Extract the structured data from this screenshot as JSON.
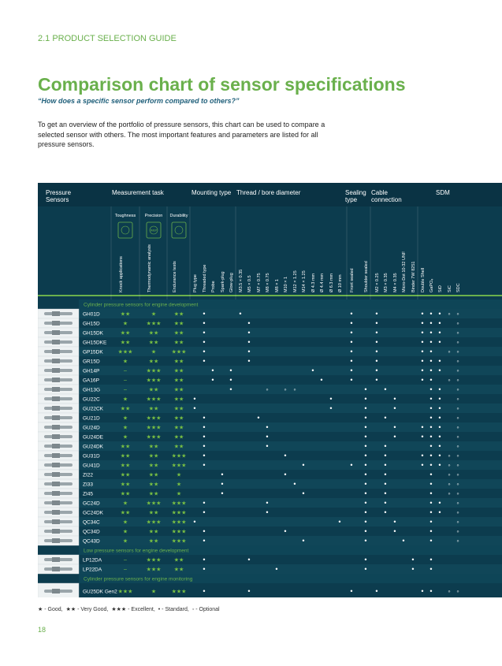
{
  "header": {
    "section": "2.1  PRODUCT SELECTION GUIDE",
    "title": "Comparison chart of sensor specifications",
    "subtitle": "“How does a specific sensor perform compared to others?”",
    "intro": "To get an overview of the portfolio of pressure sensors, this chart can be used to compare a selected sensor with others. The most important features and parameters are listed for all pressure sensors."
  },
  "table": {
    "groups": [
      "Pressure Sensors",
      "Measurement task",
      "Mounting type",
      "Thread / bore diameter",
      "Sealing type",
      "Cable connection",
      "SDM"
    ],
    "task_heads": [
      "Toughness",
      "Precision",
      "Durability"
    ],
    "icon_label": "IMEP",
    "task_columns": [
      "Knock applications",
      "Thermodynamic analysis",
      "Endurance tests"
    ],
    "columns": [
      "Plug type",
      "Threaded type",
      "Probe",
      "Spark-plug",
      "Glow-plug",
      "M3.5 × 0.35",
      "M5 × 0.5",
      "M7 × 0.75",
      "M8 × 0.75",
      "M8 × 1",
      "M10 × 1",
      "M12 × 1.25",
      "M14 × 1.25",
      "Ø 4.3 mm",
      "Ø 4.4 mm",
      "Ø 6.3 mm",
      "Ø 10 mm",
      "Front sealed",
      "Shoulder sealed",
      "M2 × 0.25",
      "M3 × 0.35",
      "M4 × 0.35",
      "Micro-Dot 10-32 UNF",
      "Binder 7W 8251",
      "Double Shell",
      "GaPO₄",
      "SiD",
      "SiC",
      "SDC"
    ],
    "sections": [
      {
        "title": "Cylinder pressure sensors for engine development",
        "rows": [
          {
            "name": "GH01D",
            "ratings": [
              "★★",
              "★",
              "★★"
            ],
            "cells": {
              "1": "•",
              "5": "•",
              "17": "•",
              "19": "•",
              "24": "•",
              "25": "•",
              "26": "•",
              "27": "◦",
              "28": "◦"
            }
          },
          {
            "name": "GH15D",
            "ratings": [
              "★",
              "★★★",
              "★★"
            ],
            "cells": {
              "1": "•",
              "6": "•",
              "17": "•",
              "19": "•",
              "24": "•",
              "25": "•",
              "26": "•",
              "28": "◦"
            }
          },
          {
            "name": "GH15DK",
            "ratings": [
              "★★",
              "★★",
              "★★"
            ],
            "cells": {
              "1": "•",
              "6": "•",
              "17": "•",
              "19": "•",
              "24": "•",
              "25": "•",
              "26": "•",
              "28": "◦"
            }
          },
          {
            "name": "GH15DKE",
            "ratings": [
              "★★",
              "★★",
              "★★"
            ],
            "cells": {
              "1": "•",
              "6": "•",
              "17": "•",
              "19": "•",
              "24": "•",
              "25": "•",
              "26": "•",
              "28": "◦"
            }
          },
          {
            "name": "GP15DK",
            "ratings": [
              "★★★",
              "★",
              "★★★"
            ],
            "cells": {
              "1": "•",
              "6": "•",
              "17": "•",
              "19": "•",
              "24": "•",
              "25": "•",
              "27": "◦",
              "28": "◦"
            }
          },
          {
            "name": "GR15D",
            "ratings": [
              "★",
              "★★",
              "★★"
            ],
            "cells": {
              "1": "•",
              "6": "•",
              "17": "•",
              "19": "•",
              "24": "•",
              "25": "•",
              "26": "•",
              "28": "◦"
            }
          },
          {
            "name": "GH14P",
            "ratings": [
              "–",
              "★★★",
              "★★"
            ],
            "cells": {
              "2": "•",
              "4": "•",
              "13": "•",
              "17": "•",
              "19": "•",
              "24": "•",
              "25": "•",
              "26": "•",
              "28": "◦"
            }
          },
          {
            "name": "GA16P",
            "ratings": [
              "–",
              "★★★",
              "★★"
            ],
            "cells": {
              "2": "•",
              "4": "•",
              "14": "•",
              "17": "•",
              "19": "•",
              "24": "•",
              "25": "•",
              "27": "◦",
              "28": "◦"
            }
          },
          {
            "name": "GH13G",
            "ratings": [
              "–",
              "★★",
              "★★"
            ],
            "cells": {
              "4": "•",
              "8": "◦",
              "10": "◦",
              "11": "◦",
              "18": "•",
              "20": "•",
              "25": "•",
              "26": "•",
              "28": "◦"
            }
          },
          {
            "name": "GU22C",
            "ratings": [
              "★",
              "★★★",
              "★★"
            ],
            "cells": {
              "0": "•",
              "15": "•",
              "18": "•",
              "21": "•",
              "25": "•",
              "26": "•",
              "28": "◦"
            }
          },
          {
            "name": "GU22CK",
            "ratings": [
              "★★",
              "★★",
              "★★"
            ],
            "cells": {
              "0": "•",
              "15": "•",
              "18": "•",
              "21": "•",
              "25": "•",
              "26": "•",
              "28": "◦"
            }
          },
          {
            "name": "GU21D",
            "ratings": [
              "★",
              "★★★",
              "★★"
            ],
            "cells": {
              "1": "•",
              "7": "•",
              "18": "•",
              "20": "•",
              "25": "•",
              "26": "•",
              "28": "◦"
            }
          },
          {
            "name": "GU24D",
            "ratings": [
              "★",
              "★★★",
              "★★"
            ],
            "cells": {
              "1": "•",
              "8": "•",
              "18": "•",
              "21": "•",
              "24": "•",
              "25": "•",
              "26": "•",
              "28": "◦"
            }
          },
          {
            "name": "GU24DE",
            "ratings": [
              "★",
              "★★★",
              "★★"
            ],
            "cells": {
              "1": "•",
              "8": "•",
              "18": "•",
              "21": "•",
              "24": "•",
              "25": "•",
              "26": "•",
              "28": "◦"
            }
          },
          {
            "name": "GU24DK",
            "ratings": [
              "★★",
              "★★",
              "★★"
            ],
            "cells": {
              "1": "•",
              "8": "•",
              "18": "•",
              "20": "•",
              "25": "•",
              "26": "•",
              "28": "◦"
            }
          },
          {
            "name": "GU31D",
            "ratings": [
              "★★",
              "★★",
              "★★★"
            ],
            "cells": {
              "1": "•",
              "10": "•",
              "18": "•",
              "20": "•",
              "24": "•",
              "25": "•",
              "26": "•",
              "27": "◦",
              "28": "◦"
            }
          },
          {
            "name": "GU41D",
            "ratings": [
              "★★",
              "★★",
              "★★★"
            ],
            "cells": {
              "1": "•",
              "12": "•",
              "17": "•",
              "18": "•",
              "20": "•",
              "24": "•",
              "25": "•",
              "26": "•",
              "27": "◦",
              "28": "◦"
            }
          },
          {
            "name": "ZI22",
            "ratings": [
              "★★",
              "★★",
              "★"
            ],
            "cells": {
              "3": "•",
              "10": "•",
              "18": "•",
              "20": "•",
              "25": "•",
              "27": "◦",
              "28": "◦"
            }
          },
          {
            "name": "ZI33",
            "ratings": [
              "★★",
              "★★",
              "★"
            ],
            "cells": {
              "3": "•",
              "11": "•",
              "18": "•",
              "20": "•",
              "25": "•",
              "27": "◦",
              "28": "◦"
            }
          },
          {
            "name": "ZI45",
            "ratings": [
              "★★",
              "★★",
              "★"
            ],
            "cells": {
              "3": "•",
              "12": "•",
              "18": "•",
              "20": "•",
              "25": "•",
              "27": "◦",
              "28": "◦"
            }
          },
          {
            "name": "GC24D",
            "ratings": [
              "★",
              "★★★",
              "★★★"
            ],
            "cells": {
              "1": "•",
              "8": "•",
              "18": "•",
              "20": "•",
              "25": "•",
              "26": "•",
              "28": "◦"
            }
          },
          {
            "name": "GC24DK",
            "ratings": [
              "★★",
              "★★",
              "★★★"
            ],
            "cells": {
              "1": "•",
              "8": "•",
              "18": "•",
              "20": "•",
              "25": "•",
              "26": "•",
              "28": "◦"
            }
          },
          {
            "name": "QC34C",
            "ratings": [
              "★",
              "★★★",
              "★★★"
            ],
            "cells": {
              "0": "•",
              "16": "•",
              "18": "•",
              "21": "•",
              "25": "•",
              "28": "◦"
            }
          },
          {
            "name": "QC34D",
            "ratings": [
              "★",
              "★★",
              "★★★"
            ],
            "cells": {
              "1": "•",
              "10": "•",
              "18": "•",
              "21": "•",
              "25": "•",
              "28": "◦"
            }
          },
          {
            "name": "QC43D",
            "ratings": [
              "★",
              "★★",
              "★★★"
            ],
            "cells": {
              "1": "•",
              "12": "•",
              "18": "•",
              "22": "•",
              "25": "•",
              "28": "◦"
            }
          }
        ]
      },
      {
        "title": "Low pressure sensors for engine development",
        "rows": [
          {
            "name": "LP12DA",
            "ratings": [
              "–",
              "★★★",
              "★★"
            ],
            "cells": {
              "1": "•",
              "6": "•",
              "18": "•",
              "23": "•",
              "25": "•"
            }
          },
          {
            "name": "LP22DA",
            "ratings": [
              "–",
              "★★★",
              "★★"
            ],
            "cells": {
              "1": "•",
              "9": "•",
              "18": "•",
              "23": "•",
              "25": "•"
            }
          }
        ]
      },
      {
        "title": "Cylinder pressure sensors for engine monitoring",
        "rows": [
          {
            "name": "GU25DK Gen2",
            "ratings": [
              "★★★",
              "★",
              "★★★"
            ],
            "cells": {
              "1": "•",
              "6": "•",
              "17": "•",
              "19": "•",
              "24": "•",
              "25": "•",
              "27": "◦",
              "28": "◦"
            }
          }
        ]
      }
    ]
  },
  "legend": [
    "★ - Good,",
    "★★ - Very Good,",
    "★★★ - Excellent,",
    "• - Standard,",
    "◦ - Optional"
  ],
  "page": "18"
}
